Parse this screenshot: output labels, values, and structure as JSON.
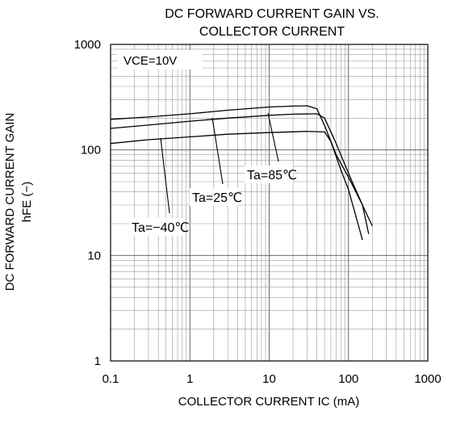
{
  "chart_data": {
    "type": "line",
    "title_lines": [
      "DC FORWARD CURRENT GAIN VS.",
      "COLLECTOR CURRENT"
    ],
    "xlabel": "COLLECTOR CURRENT IC (mA)",
    "ylabel_lines": [
      "DC FORWARD CURRENT GAIN",
      "hFE (−)"
    ],
    "x_scale": "log",
    "y_scale": "log",
    "xlim": [
      0.1,
      1000
    ],
    "ylim": [
      1,
      1000
    ],
    "x_ticks": [
      "0.1",
      "1",
      "10",
      "100",
      "1000"
    ],
    "x_tick_values": [
      0.1,
      1,
      10,
      100,
      1000
    ],
    "y_ticks": [
      "1",
      "10",
      "100",
      "1000"
    ],
    "y_tick_values": [
      1,
      10,
      100,
      1000
    ],
    "grid": true,
    "condition_label": "VCE=10V",
    "series": [
      {
        "name": "Ta=85℃",
        "x": [
          0.1,
          0.3,
          1,
          3,
          10,
          20,
          30,
          40,
          50,
          70,
          100,
          150,
          200
        ],
        "y": [
          195,
          205,
          220,
          238,
          255,
          260,
          262,
          245,
          170,
          90,
          55,
          30,
          19
        ]
      },
      {
        "name": "Ta=25℃",
        "x": [
          0.1,
          0.3,
          1,
          3,
          10,
          20,
          40,
          50,
          70,
          100,
          150,
          180
        ],
        "y": [
          160,
          172,
          187,
          200,
          213,
          218,
          220,
          200,
          115,
          60,
          30,
          16
        ]
      },
      {
        "name": "Ta=−40℃",
        "x": [
          0.1,
          0.3,
          1,
          3,
          10,
          30,
          50,
          60,
          80,
          100,
          150
        ],
        "y": [
          115,
          125,
          133,
          141,
          146,
          150,
          148,
          120,
          65,
          42,
          14
        ]
      }
    ]
  }
}
